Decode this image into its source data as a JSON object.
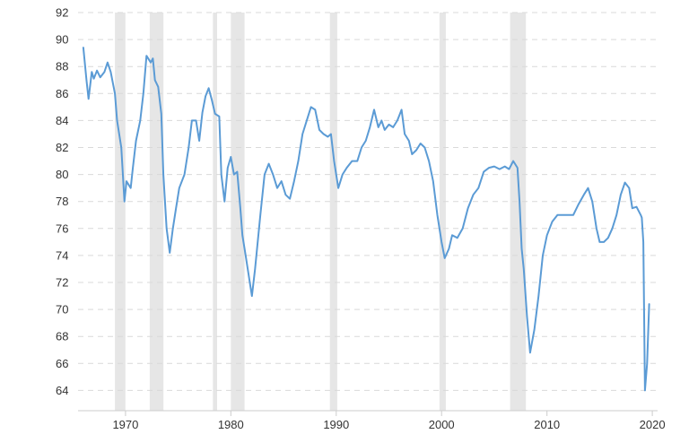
{
  "chart_data": {
    "type": "line",
    "title": "",
    "xlabel": "",
    "ylabel": "",
    "xlim": [
      1965.5,
      2020.5
    ],
    "ylim": [
      62.5,
      92
    ],
    "grid": true,
    "legend": "none",
    "colors": {
      "line": "#5b9bd5",
      "recession": "#e6e6e6",
      "grid": "#d9d9d9",
      "text": "#333333"
    },
    "y_ticks": [
      "92",
      "90",
      "88",
      "86",
      "84",
      "82",
      "80",
      "78",
      "76",
      "74",
      "72",
      "70",
      "68",
      "66",
      "64"
    ],
    "x_ticks": [
      "1970",
      "1980",
      "1990",
      "2000",
      "2010",
      "2020"
    ],
    "recessions": [
      [
        1969.0,
        1970.0
      ],
      [
        1972.3,
        1973.6
      ],
      [
        1978.3,
        1978.7
      ],
      [
        1980.0,
        1981.3
      ],
      [
        1989.4,
        1990.1
      ],
      [
        1999.8,
        2000.4
      ],
      [
        2006.5,
        2008.0
      ]
    ],
    "series": [
      {
        "values": [
          [
            1966.0,
            89.4
          ],
          [
            1966.3,
            87.0
          ],
          [
            1966.5,
            85.6
          ],
          [
            1966.8,
            87.6
          ],
          [
            1967.0,
            87.1
          ],
          [
            1967.3,
            87.7
          ],
          [
            1967.6,
            87.2
          ],
          [
            1968.0,
            87.6
          ],
          [
            1968.3,
            88.3
          ],
          [
            1968.6,
            87.6
          ],
          [
            1969.0,
            86.0
          ],
          [
            1969.2,
            84.0
          ],
          [
            1969.6,
            82.0
          ],
          [
            1969.9,
            78.0
          ],
          [
            1970.1,
            79.5
          ],
          [
            1970.5,
            79.0
          ],
          [
            1970.7,
            80.5
          ],
          [
            1971.0,
            82.5
          ],
          [
            1971.4,
            84.0
          ],
          [
            1971.7,
            86.0
          ],
          [
            1972.0,
            88.8
          ],
          [
            1972.4,
            88.3
          ],
          [
            1972.6,
            88.6
          ],
          [
            1972.8,
            87.0
          ],
          [
            1973.1,
            86.5
          ],
          [
            1973.4,
            84.5
          ],
          [
            1973.6,
            80.0
          ],
          [
            1973.9,
            76.0
          ],
          [
            1974.2,
            74.2
          ],
          [
            1974.5,
            76.0
          ],
          [
            1974.8,
            77.5
          ],
          [
            1975.1,
            79.0
          ],
          [
            1975.6,
            80.0
          ],
          [
            1976.0,
            82.0
          ],
          [
            1976.3,
            84.0
          ],
          [
            1976.7,
            84.0
          ],
          [
            1977.0,
            82.5
          ],
          [
            1977.3,
            84.6
          ],
          [
            1977.6,
            85.8
          ],
          [
            1977.9,
            86.4
          ],
          [
            1978.2,
            85.5
          ],
          [
            1978.5,
            84.5
          ],
          [
            1978.9,
            84.3
          ],
          [
            1979.1,
            80.0
          ],
          [
            1979.4,
            78.0
          ],
          [
            1979.7,
            80.5
          ],
          [
            1980.0,
            81.3
          ],
          [
            1980.3,
            80.0
          ],
          [
            1980.6,
            80.2
          ],
          [
            1980.9,
            77.5
          ],
          [
            1981.1,
            75.5
          ],
          [
            1981.4,
            74.0
          ],
          [
            1981.7,
            72.5
          ],
          [
            1982.0,
            71.0
          ],
          [
            1982.3,
            73.0
          ],
          [
            1982.8,
            77.0
          ],
          [
            1983.2,
            80.0
          ],
          [
            1983.6,
            80.8
          ],
          [
            1984.0,
            80.0
          ],
          [
            1984.4,
            79.0
          ],
          [
            1984.8,
            79.5
          ],
          [
            1985.2,
            78.5
          ],
          [
            1985.6,
            78.2
          ],
          [
            1986.0,
            79.5
          ],
          [
            1986.4,
            81.0
          ],
          [
            1986.8,
            83.0
          ],
          [
            1987.2,
            84.0
          ],
          [
            1987.6,
            85.0
          ],
          [
            1988.0,
            84.8
          ],
          [
            1988.4,
            83.3
          ],
          [
            1988.8,
            83.0
          ],
          [
            1989.2,
            82.8
          ],
          [
            1989.5,
            83.0
          ],
          [
            1989.8,
            81.0
          ],
          [
            1990.2,
            79.0
          ],
          [
            1990.6,
            80.0
          ],
          [
            1991.0,
            80.5
          ],
          [
            1991.5,
            81.0
          ],
          [
            1992.0,
            81.0
          ],
          [
            1992.4,
            82.0
          ],
          [
            1992.8,
            82.5
          ],
          [
            1993.2,
            83.5
          ],
          [
            1993.6,
            84.8
          ],
          [
            1994.0,
            83.5
          ],
          [
            1994.3,
            84.0
          ],
          [
            1994.6,
            83.3
          ],
          [
            1995.0,
            83.7
          ],
          [
            1995.4,
            83.5
          ],
          [
            1995.8,
            84.0
          ],
          [
            1996.2,
            84.8
          ],
          [
            1996.5,
            83.0
          ],
          [
            1996.9,
            82.5
          ],
          [
            1997.2,
            81.5
          ],
          [
            1997.6,
            81.8
          ],
          [
            1998.0,
            82.3
          ],
          [
            1998.4,
            82.0
          ],
          [
            1998.8,
            81.0
          ],
          [
            1999.2,
            79.5
          ],
          [
            1999.6,
            77.0
          ],
          [
            2000.0,
            75.0
          ],
          [
            2000.3,
            73.8
          ],
          [
            2000.7,
            74.5
          ],
          [
            2001.0,
            75.5
          ],
          [
            2001.5,
            75.3
          ],
          [
            2002.0,
            76.0
          ],
          [
            2002.5,
            77.5
          ],
          [
            2003.0,
            78.5
          ],
          [
            2003.5,
            79.0
          ],
          [
            2004.0,
            80.2
          ],
          [
            2004.5,
            80.5
          ],
          [
            2005.0,
            80.6
          ],
          [
            2005.5,
            80.4
          ],
          [
            2006.0,
            80.6
          ],
          [
            2006.4,
            80.4
          ],
          [
            2006.8,
            81.0
          ],
          [
            2007.2,
            80.5
          ],
          [
            2007.4,
            78.0
          ],
          [
            2007.6,
            74.5
          ],
          [
            2007.8,
            73.0
          ],
          [
            2008.1,
            69.5
          ],
          [
            2008.4,
            66.8
          ],
          [
            2008.8,
            68.5
          ],
          [
            2009.2,
            71.0
          ],
          [
            2009.6,
            74.0
          ],
          [
            2010.0,
            75.5
          ],
          [
            2010.5,
            76.5
          ],
          [
            2011.0,
            77.0
          ],
          [
            2011.5,
            77.0
          ],
          [
            2012.0,
            77.0
          ],
          [
            2012.5,
            77.0
          ],
          [
            2013.0,
            77.8
          ],
          [
            2013.5,
            78.5
          ],
          [
            2013.9,
            79.0
          ],
          [
            2014.3,
            78.0
          ],
          [
            2014.7,
            76.0
          ],
          [
            2015.0,
            75.0
          ],
          [
            2015.4,
            75.0
          ],
          [
            2015.8,
            75.3
          ],
          [
            2016.2,
            76.0
          ],
          [
            2016.6,
            77.0
          ],
          [
            2017.0,
            78.5
          ],
          [
            2017.4,
            79.4
          ],
          [
            2017.8,
            79.0
          ],
          [
            2018.1,
            77.5
          ],
          [
            2018.5,
            77.6
          ],
          [
            2018.9,
            77.0
          ],
          [
            2019.0,
            76.8
          ],
          [
            2019.15,
            75.0
          ],
          [
            2019.3,
            64.0
          ],
          [
            2019.5,
            66.0
          ],
          [
            2019.7,
            70.4
          ]
        ]
      }
    ]
  }
}
